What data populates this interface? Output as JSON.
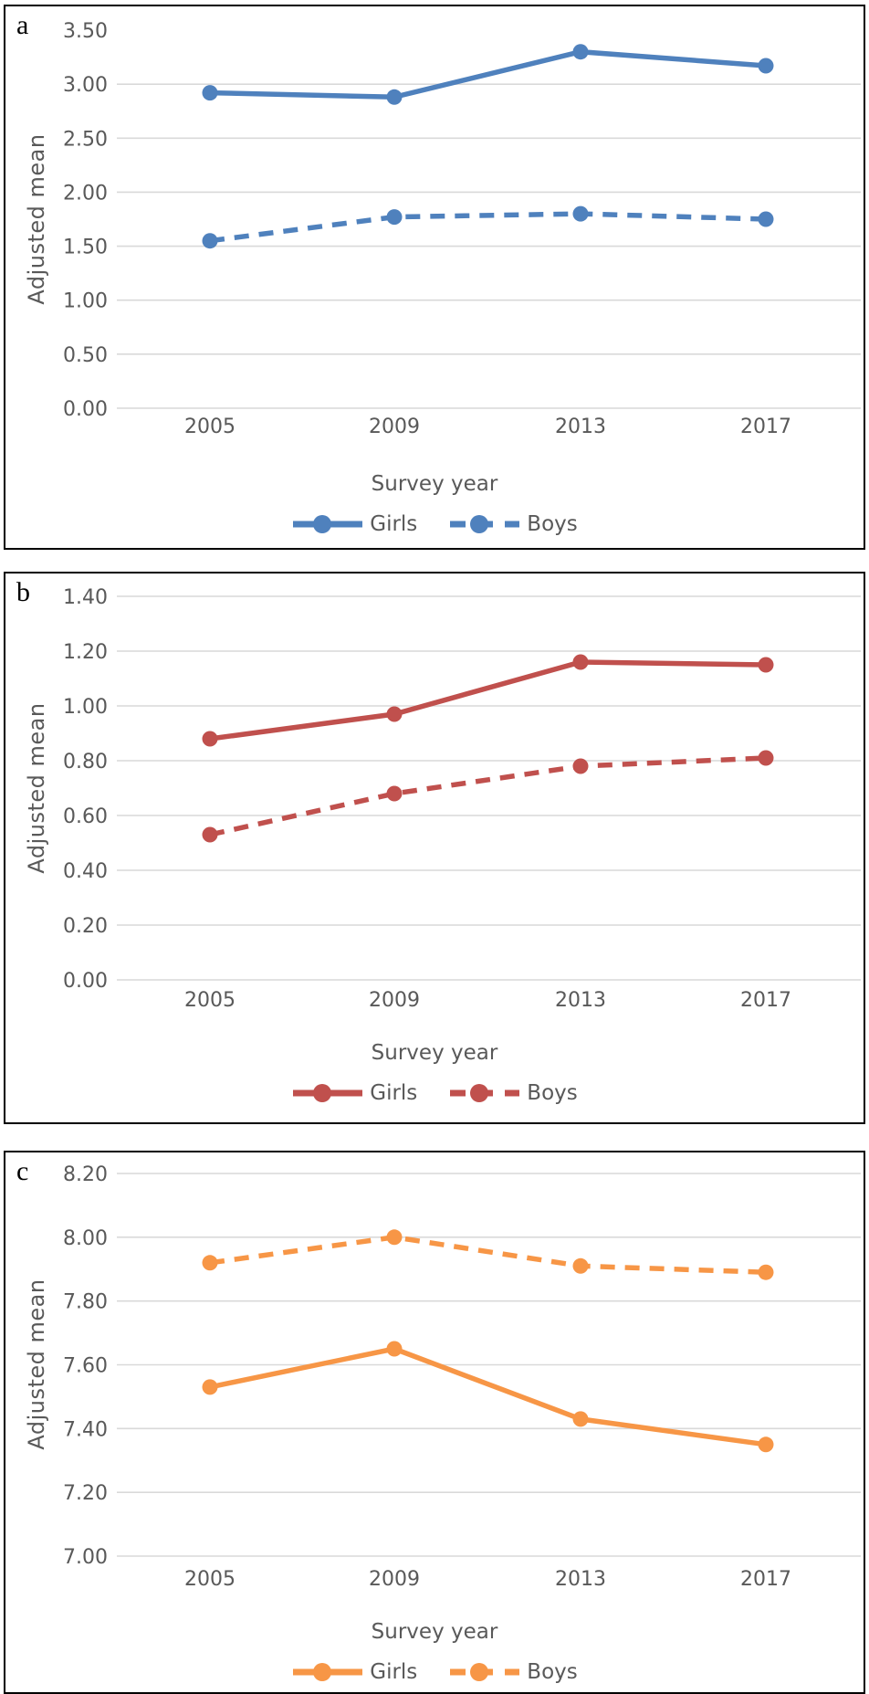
{
  "figure": {
    "background": "#ffffff",
    "panel_border_color": "#000000",
    "grid_color": "#d9d9d9",
    "text_color": "#595959"
  },
  "chart_data": [
    {
      "type": "line",
      "panel_label": "a",
      "title": "",
      "xlabel": "Survey year",
      "ylabel": "Adjusted mean",
      "categories": [
        "2005",
        "2009",
        "2013",
        "2017"
      ],
      "series": [
        {
          "name": "Girls",
          "style": "solid",
          "values": [
            2.92,
            2.88,
            3.3,
            3.17
          ]
        },
        {
          "name": "Boys",
          "style": "dashed",
          "values": [
            1.55,
            1.77,
            1.8,
            1.75
          ]
        }
      ],
      "color": "#4F81BD",
      "ylim": [
        0.0,
        3.5
      ],
      "ytick_step": 0.5,
      "ytick_labels": [
        "3.50",
        "3.00",
        "2.50",
        "2.00",
        "1.50",
        "1.00",
        "0.50",
        "0.00"
      ],
      "top_gridline": false,
      "grid": "horizontal",
      "legend_position": "bottom"
    },
    {
      "type": "line",
      "panel_label": "b",
      "title": "",
      "xlabel": "Survey year",
      "ylabel": "Adjusted mean",
      "categories": [
        "2005",
        "2009",
        "2013",
        "2017"
      ],
      "series": [
        {
          "name": "Girls",
          "style": "solid",
          "values": [
            0.88,
            0.97,
            1.16,
            1.15
          ]
        },
        {
          "name": "Boys",
          "style": "dashed",
          "values": [
            0.53,
            0.68,
            0.78,
            0.81
          ]
        }
      ],
      "color": "#C0504D",
      "ylim": [
        0.0,
        1.4
      ],
      "ytick_step": 0.2,
      "ytick_labels": [
        "1.40",
        "1.20",
        "1.00",
        "0.80",
        "0.60",
        "0.40",
        "0.20",
        "0.00"
      ],
      "top_gridline": true,
      "grid": "horizontal",
      "legend_position": "bottom"
    },
    {
      "type": "line",
      "panel_label": "c",
      "title": "",
      "xlabel": "Survey year",
      "ylabel": "Adjusted mean",
      "categories": [
        "2005",
        "2009",
        "2013",
        "2017"
      ],
      "series": [
        {
          "name": "Girls",
          "style": "solid",
          "values": [
            7.53,
            7.65,
            7.43,
            7.35
          ]
        },
        {
          "name": "Boys",
          "style": "dashed",
          "values": [
            7.92,
            8.0,
            7.91,
            7.89
          ]
        }
      ],
      "color": "#F79646",
      "ylim": [
        7.0,
        8.2
      ],
      "ytick_step": 0.2,
      "ytick_labels": [
        "8.20",
        "8.00",
        "7.80",
        "7.60",
        "7.40",
        "7.20",
        "7.00"
      ],
      "top_gridline": true,
      "grid": "horizontal",
      "legend_position": "bottom"
    }
  ]
}
